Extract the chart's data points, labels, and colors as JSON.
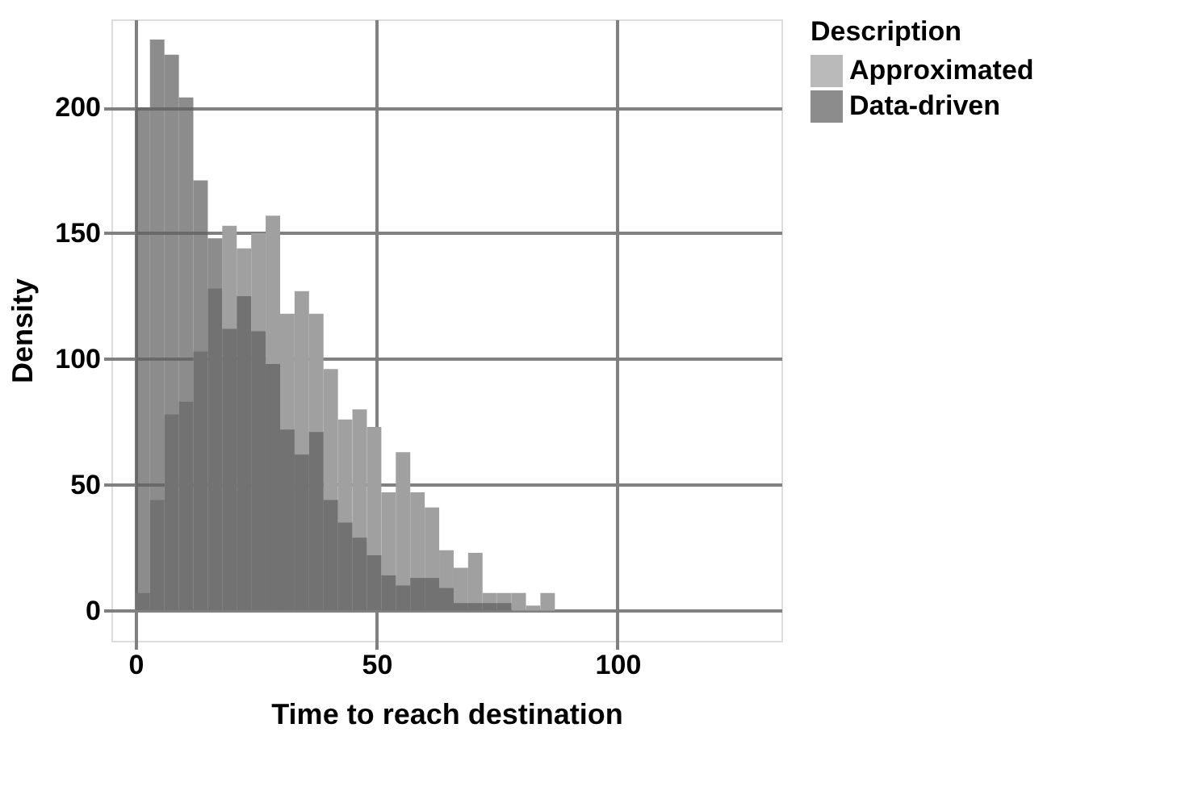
{
  "chart_data": {
    "type": "histogram",
    "xlabel": "Time to reach destination",
    "ylabel": "Density",
    "legend_title": "Description",
    "bins": [
      0,
      3,
      6,
      9,
      12,
      15,
      18,
      21,
      24,
      27,
      30,
      33,
      36,
      39,
      42,
      45,
      48,
      51,
      54,
      57,
      60,
      63,
      66,
      69,
      72,
      75,
      78,
      81,
      84,
      87
    ],
    "series": [
      {
        "name": "Approximated",
        "color": "#a0a0a0",
        "values": [
          7,
          44,
          78,
          83,
          103,
          128,
          153,
          144,
          150,
          157,
          118,
          127,
          118,
          96,
          76,
          80,
          73,
          47,
          63,
          47,
          41,
          24,
          17,
          23,
          7,
          7,
          7,
          2,
          7
        ]
      },
      {
        "name": "Data-driven",
        "color": "#606060",
        "values": [
          200,
          227,
          221,
          204,
          171,
          148,
          112,
          125,
          111,
          98,
          72,
          62,
          71,
          44,
          35,
          29,
          22,
          14,
          10,
          13,
          13,
          9,
          3,
          3,
          3,
          3,
          0,
          0,
          0
        ]
      }
    ],
    "xlim": [
      -5,
      134
    ],
    "ylim": [
      -12,
      235
    ],
    "xticks": [
      0,
      50,
      100
    ],
    "yticks": [
      0,
      50,
      100,
      150,
      200
    ],
    "grid": true,
    "legend": "right"
  }
}
